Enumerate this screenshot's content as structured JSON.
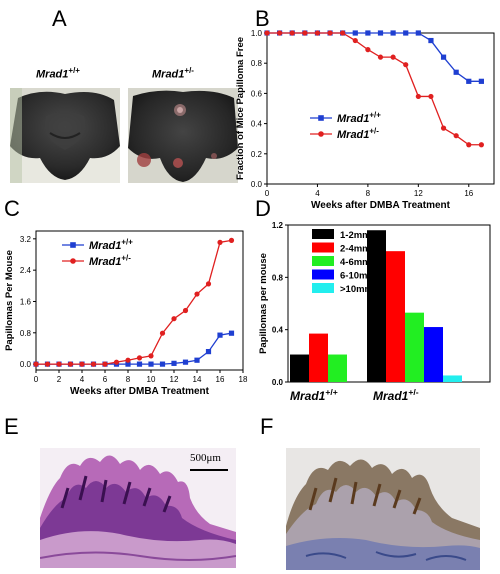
{
  "panels": {
    "a": "A",
    "b": "B",
    "c": "C",
    "d": "D",
    "e": "E",
    "f": "F"
  },
  "panel_a": {
    "left_genotype": "Mrad1",
    "left_sup": "+/+",
    "right_genotype": "Mrad1",
    "right_sup": "+/-"
  },
  "panel_e": {
    "scale_bar": "500μm"
  },
  "colors": {
    "wt": "#1f3fd1",
    "het": "#e02020"
  },
  "chart_data": [
    {
      "id": "B",
      "type": "line",
      "ylabel": "Fraction of Mice Papilloma Free",
      "xlabel": "Weeks after DMBA Treatment",
      "xlim": [
        0,
        18
      ],
      "ylim": [
        0,
        1.0
      ],
      "xticks": [
        "0",
        "4",
        "8",
        "12",
        "16"
      ],
      "xtick_values": [
        0,
        4,
        8,
        12,
        16
      ],
      "yticks": [
        "0.0",
        "0.2",
        "0.4",
        "0.6",
        "0.8",
        "1.0"
      ],
      "ytick_values": [
        0,
        0.2,
        0.4,
        0.6,
        0.8,
        1.0
      ],
      "legend": {
        "placement": "middle",
        "entries": [
          {
            "name": "Mrad1",
            "sup": "+/+",
            "color": "#1f3fd1",
            "marker": "square"
          },
          {
            "name": "Mrad1",
            "sup": "+/-",
            "color": "#e02020",
            "marker": "circle"
          }
        ]
      },
      "series": [
        {
          "color": "#1f3fd1",
          "marker": "square",
          "x": [
            0,
            1,
            2,
            3,
            4,
            5,
            6,
            7,
            8,
            9,
            10,
            11,
            12,
            13,
            14,
            15,
            16,
            17
          ],
          "y": [
            1,
            1,
            1,
            1,
            1,
            1,
            1,
            1,
            1,
            1,
            1,
            1,
            1,
            0.95,
            0.84,
            0.74,
            0.68,
            0.68
          ]
        },
        {
          "color": "#e02020",
          "marker": "circle",
          "x": [
            0,
            1,
            2,
            3,
            4,
            5,
            6,
            7,
            8,
            9,
            10,
            11,
            12,
            13,
            14,
            15,
            16,
            17
          ],
          "y": [
            1,
            1,
            1,
            1,
            1,
            1,
            1,
            0.95,
            0.89,
            0.84,
            0.84,
            0.79,
            0.58,
            0.58,
            0.37,
            0.32,
            0.26,
            0.26
          ]
        }
      ]
    },
    {
      "id": "C",
      "type": "line",
      "ylabel": "Papillomas Per Mouse",
      "xlabel": "Weeks after DMBA Treatment",
      "xlim": [
        0,
        18
      ],
      "ylim": [
        -0.15,
        3.4
      ],
      "xticks": [
        "0",
        "2",
        "4",
        "6",
        "8",
        "10",
        "12",
        "14",
        "16",
        "18"
      ],
      "xtick_values": [
        0,
        2,
        4,
        6,
        8,
        10,
        12,
        14,
        16,
        18
      ],
      "yticks": [
        "0.0",
        "0.8",
        "1.6",
        "2.4",
        "3.2"
      ],
      "ytick_values": [
        0,
        0.8,
        1.6,
        2.4,
        3.2
      ],
      "legend": {
        "placement": "top-left",
        "entries": [
          {
            "name": "Mrad1",
            "sup": "+/+",
            "color": "#1f3fd1",
            "marker": "square"
          },
          {
            "name": "Mrad1",
            "sup": "+/-",
            "color": "#e02020",
            "marker": "circle"
          }
        ]
      },
      "series": [
        {
          "color": "#1f3fd1",
          "marker": "square",
          "x": [
            0,
            1,
            2,
            3,
            4,
            5,
            6,
            7,
            8,
            9,
            10,
            11,
            12,
            13,
            14,
            15,
            16,
            17
          ],
          "y": [
            0,
            0,
            0,
            0,
            0,
            0,
            0,
            0,
            0,
            0,
            0,
            0,
            0.02,
            0.05,
            0.1,
            0.32,
            0.74,
            0.79
          ]
        },
        {
          "color": "#e02020",
          "marker": "circle",
          "x": [
            0,
            1,
            2,
            3,
            4,
            5,
            6,
            7,
            8,
            9,
            10,
            11,
            12,
            13,
            14,
            15,
            16,
            17
          ],
          "y": [
            0,
            0,
            0,
            0,
            0,
            0,
            0,
            0.05,
            0.1,
            0.16,
            0.21,
            0.79,
            1.16,
            1.37,
            1.79,
            2.05,
            3.11,
            3.16
          ]
        }
      ]
    },
    {
      "id": "D",
      "type": "bar",
      "ylabel": "Papillomas per mouse",
      "ylim": [
        0,
        1.2
      ],
      "yticks": [
        "0.0",
        "0.4",
        "0.8",
        "1.2"
      ],
      "ytick_values": [
        0,
        0.4,
        0.8,
        1.2
      ],
      "legend": {
        "placement": "top-left",
        "entries": [
          {
            "name": "1-2mm",
            "color": "#000000"
          },
          {
            "name": "2-4mm",
            "color": "#ff0000"
          },
          {
            "name": "4-6mm",
            "color": "#22ee22"
          },
          {
            "name": "6-10mm",
            "color": "#0000ff"
          },
          {
            "name": ">10mm",
            "color": "#22eeee"
          }
        ]
      },
      "groups": [
        {
          "name": "Mrad1",
          "sup": "+/+",
          "values": [
            0.21,
            0.37,
            0.21,
            0,
            0
          ]
        },
        {
          "name": "Mrad1",
          "sup": "+/-",
          "values": [
            1.16,
            1.0,
            0.53,
            0.42,
            0.05
          ]
        }
      ]
    }
  ]
}
